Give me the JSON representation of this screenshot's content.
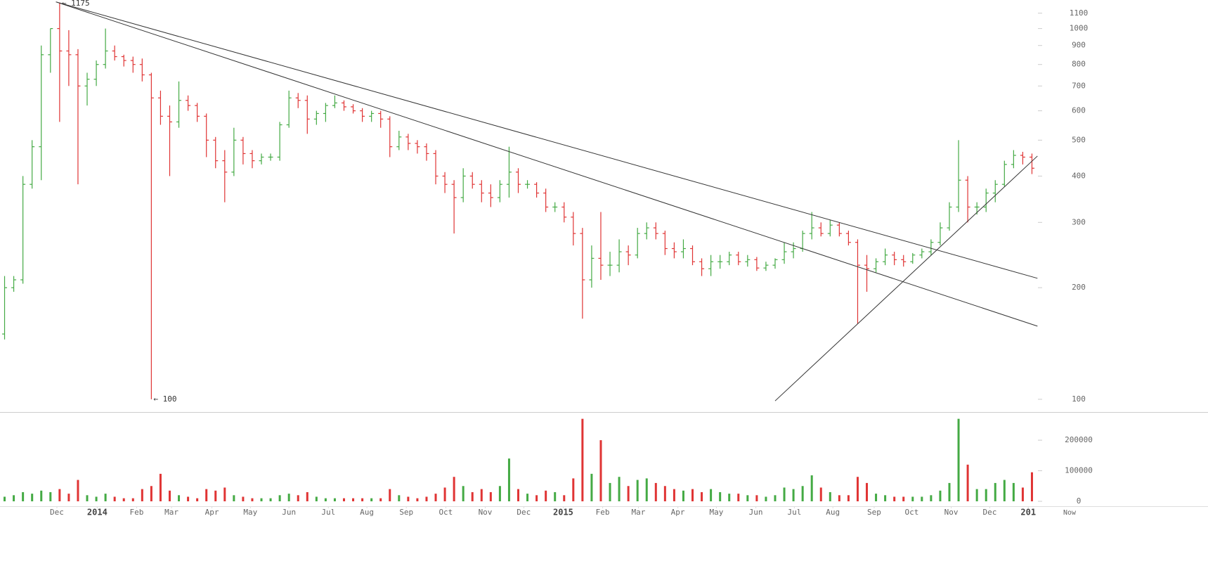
{
  "chart_data": {
    "type": "ohlc",
    "log_scale": true,
    "up_color": "#44aa44",
    "down_color": "#e03434",
    "xlim": [
      -0.5,
      112.5
    ],
    "xticks": [
      {
        "value": 5.7,
        "label": "Dec"
      },
      {
        "value": 10.1,
        "label": "2014"
      },
      {
        "value": 14.4,
        "label": "Feb"
      },
      {
        "value": 18.2,
        "label": "Mar"
      },
      {
        "value": 22.6,
        "label": "Apr"
      },
      {
        "value": 26.8,
        "label": "May"
      },
      {
        "value": 31.0,
        "label": "Jun"
      },
      {
        "value": 35.3,
        "label": "Jul"
      },
      {
        "value": 39.5,
        "label": "Aug"
      },
      {
        "value": 43.8,
        "label": "Sep"
      },
      {
        "value": 48.1,
        "label": "Oct"
      },
      {
        "value": 52.4,
        "label": "Nov"
      },
      {
        "value": 56.6,
        "label": "Dec"
      },
      {
        "value": 60.9,
        "label": "2015"
      },
      {
        "value": 65.2,
        "label": "Feb"
      },
      {
        "value": 69.1,
        "label": "Mar"
      },
      {
        "value": 73.4,
        "label": "Apr"
      },
      {
        "value": 77.6,
        "label": "May"
      },
      {
        "value": 81.9,
        "label": "Jun"
      },
      {
        "value": 86.1,
        "label": "Jul"
      },
      {
        "value": 90.3,
        "label": "Aug"
      },
      {
        "value": 94.8,
        "label": "Sep"
      },
      {
        "value": 98.9,
        "label": "Oct"
      },
      {
        "value": 103.2,
        "label": "Nov"
      },
      {
        "value": 107.4,
        "label": "Dec"
      },
      {
        "value": 111.6,
        "label": "201"
      }
    ],
    "x_end_label": "Now",
    "ylim": [
      92.8,
      1194
    ],
    "yticks": [
      100,
      200,
      300,
      400,
      500,
      600,
      700,
      800,
      900,
      1000,
      1100
    ],
    "open": [
      150,
      200,
      210,
      380,
      480,
      850,
      1000,
      870,
      850,
      700,
      730,
      800,
      870,
      840,
      820,
      800,
      750,
      650,
      580,
      560,
      640,
      620,
      580,
      500,
      440,
      410,
      500,
      460,
      440,
      450,
      450,
      550,
      650,
      640,
      570,
      590,
      620,
      630,
      615,
      600,
      580,
      590,
      570,
      480,
      510,
      490,
      480,
      460,
      400,
      380,
      350,
      400,
      380,
      360,
      350,
      380,
      410,
      380,
      380,
      360,
      330,
      330,
      310,
      280,
      210,
      240,
      230,
      230,
      250,
      245,
      280,
      290,
      280,
      255,
      250,
      255,
      235,
      225,
      235,
      235,
      245,
      235,
      238,
      226,
      230,
      238,
      250,
      255,
      280,
      290,
      280,
      295,
      280,
      265,
      230,
      225,
      235,
      245,
      238,
      235,
      245,
      250,
      265,
      290,
      330,
      390,
      330,
      330,
      360,
      380,
      430,
      455,
      450
    ],
    "high": [
      215,
      215,
      400,
      500,
      900,
      1000,
      1175,
      990,
      880,
      760,
      820,
      1000,
      900,
      850,
      840,
      830,
      760,
      680,
      620,
      720,
      660,
      630,
      590,
      510,
      470,
      540,
      510,
      470,
      460,
      460,
      560,
      680,
      670,
      660,
      600,
      630,
      660,
      640,
      625,
      610,
      600,
      600,
      580,
      530,
      520,
      500,
      490,
      470,
      410,
      390,
      420,
      410,
      390,
      380,
      390,
      480,
      420,
      390,
      385,
      370,
      340,
      340,
      320,
      290,
      260,
      320,
      250,
      270,
      260,
      290,
      300,
      300,
      285,
      265,
      270,
      260,
      240,
      245,
      245,
      250,
      250,
      245,
      242,
      235,
      240,
      265,
      265,
      285,
      320,
      300,
      305,
      300,
      285,
      270,
      245,
      240,
      255,
      250,
      245,
      248,
      255,
      270,
      300,
      340,
      500,
      400,
      340,
      370,
      390,
      440,
      470,
      465,
      460
    ],
    "low": [
      145,
      195,
      205,
      370,
      390,
      760,
      560,
      700,
      380,
      620,
      700,
      780,
      820,
      790,
      760,
      720,
      100,
      550,
      400,
      540,
      600,
      560,
      450,
      420,
      340,
      400,
      430,
      420,
      430,
      440,
      440,
      540,
      610,
      520,
      550,
      560,
      610,
      600,
      590,
      560,
      560,
      540,
      450,
      470,
      470,
      460,
      440,
      380,
      360,
      280,
      340,
      370,
      340,
      330,
      340,
      350,
      360,
      370,
      350,
      320,
      320,
      300,
      260,
      165,
      200,
      210,
      215,
      220,
      230,
      240,
      270,
      270,
      245,
      240,
      240,
      230,
      215,
      215,
      225,
      230,
      230,
      228,
      222,
      222,
      225,
      232,
      240,
      250,
      270,
      275,
      275,
      275,
      260,
      160,
      195,
      220,
      230,
      230,
      228,
      232,
      240,
      245,
      260,
      285,
      320,
      300,
      315,
      320,
      340,
      375,
      420,
      430,
      405
    ],
    "close": [
      200,
      210,
      380,
      480,
      850,
      1000,
      870,
      850,
      700,
      730,
      800,
      870,
      840,
      820,
      800,
      750,
      650,
      580,
      560,
      640,
      620,
      580,
      500,
      440,
      410,
      500,
      460,
      440,
      450,
      450,
      550,
      650,
      640,
      570,
      590,
      620,
      630,
      615,
      600,
      580,
      590,
      570,
      480,
      510,
      490,
      480,
      460,
      400,
      380,
      350,
      400,
      380,
      360,
      350,
      380,
      410,
      380,
      380,
      360,
      330,
      330,
      310,
      280,
      210,
      240,
      230,
      230,
      250,
      245,
      280,
      290,
      280,
      255,
      250,
      255,
      235,
      225,
      235,
      235,
      245,
      235,
      238,
      226,
      230,
      238,
      250,
      255,
      280,
      290,
      280,
      295,
      280,
      265,
      230,
      225,
      235,
      245,
      238,
      235,
      245,
      250,
      265,
      290,
      330,
      390,
      330,
      330,
      360,
      380,
      430,
      455,
      450,
      420
    ],
    "annotations": [
      {
        "label": "← 1175",
        "value": 1175,
        "x": 6
      },
      {
        "label": "← 100",
        "value": 100,
        "x": 16
      }
    ],
    "trendlines": [
      {
        "x": [
          5.6,
          112.6
        ],
        "y": [
          1180,
          212
        ],
        "color": "#333333"
      },
      {
        "x": [
          5.6,
          112.6
        ],
        "y": [
          1180,
          157.5
        ],
        "color": "#333333"
      },
      {
        "x": [
          84.0,
          112.6
        ],
        "y": [
          99,
          453
        ],
        "color": "#333333"
      }
    ],
    "volume": {
      "ylim": [
        0,
        283000
      ],
      "yticks": [
        0,
        100000,
        200000
      ],
      "values": [
        15000,
        20000,
        30000,
        25000,
        35000,
        30000,
        40000,
        25000,
        70000,
        20000,
        15000,
        25000,
        15000,
        10000,
        10000,
        40000,
        50000,
        90000,
        35000,
        20000,
        15000,
        10000,
        40000,
        35000,
        45000,
        20000,
        15000,
        10000,
        10000,
        10000,
        20000,
        25000,
        20000,
        30000,
        15000,
        10000,
        10000,
        10000,
        10000,
        10000,
        10000,
        10000,
        40000,
        20000,
        15000,
        10000,
        15000,
        25000,
        45000,
        80000,
        50000,
        30000,
        40000,
        30000,
        50000,
        140000,
        40000,
        25000,
        20000,
        35000,
        30000,
        20000,
        75000,
        270000,
        90000,
        200000,
        60000,
        80000,
        50000,
        70000,
        75000,
        60000,
        50000,
        40000,
        35000,
        40000,
        30000,
        40000,
        30000,
        25000,
        25000,
        20000,
        20000,
        15000,
        20000,
        45000,
        40000,
        50000,
        85000,
        45000,
        30000,
        20000,
        20000,
        80000,
        60000,
        25000,
        20000,
        15000,
        15000,
        15000,
        15000,
        20000,
        35000,
        60000,
        270000,
        120000,
        40000,
        40000,
        60000,
        70000,
        60000,
        45000,
        95000
      ]
    }
  }
}
